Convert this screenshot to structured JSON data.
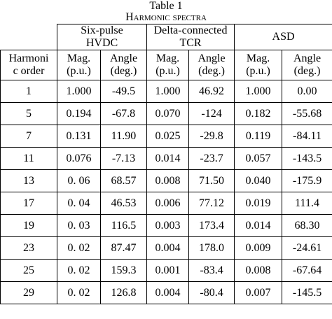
{
  "caption": {
    "number": "Table 1",
    "title": "Harmonic spectra"
  },
  "groups": [
    "Six-pulse HVDC",
    "Delta-connected TCR",
    "ASD"
  ],
  "group_lines": [
    [
      "Six-pulse",
      "HVDC"
    ],
    [
      "Delta-connected",
      "TCR"
    ],
    [
      "ASD"
    ]
  ],
  "row_header": [
    "Harmoni",
    "c order"
  ],
  "subheaders": [
    [
      "Mag.",
      "(p.u.)"
    ],
    [
      "Angle",
      "(deg.)"
    ],
    [
      "Mag.",
      "(p.u.)"
    ],
    [
      "Angle",
      "(deg.)"
    ],
    [
      "Mag.",
      "(p.u.)"
    ],
    [
      "Angle",
      "(deg.)"
    ]
  ],
  "rows": [
    [
      "1",
      "1.000",
      "-49.5",
      "1.000",
      "46.92",
      "1.000",
      "0.00"
    ],
    [
      "5",
      "0.194",
      "-67.8",
      "0.070",
      "-124",
      "0.182",
      "-55.68"
    ],
    [
      "7",
      "0.131",
      "11.90",
      "0.025",
      "-29.8",
      "0.119",
      "-84.11"
    ],
    [
      "11",
      "0.076",
      "-7.13",
      "0.014",
      "-23.7",
      "0.057",
      "-143.5"
    ],
    [
      "13",
      "0. 06",
      "68.57",
      "0.008",
      "71.50",
      "0.040",
      "-175.9"
    ],
    [
      "17",
      "0. 04",
      "46.53",
      "0.006",
      "77.12",
      "0.019",
      "111.4"
    ],
    [
      "19",
      "0. 03",
      "116.5",
      "0.003",
      "173.4",
      "0.014",
      "68.30"
    ],
    [
      "23",
      "0. 02",
      "87.47",
      "0.004",
      "178.0",
      "0.009",
      "-24.61"
    ],
    [
      "25",
      "0. 02",
      "159.3",
      "0.001",
      "-83.4",
      "0.008",
      "-67.64"
    ],
    [
      "29",
      "0. 02",
      "126.8",
      "0.004",
      "-80.4",
      "0.007",
      "-145.5"
    ]
  ]
}
